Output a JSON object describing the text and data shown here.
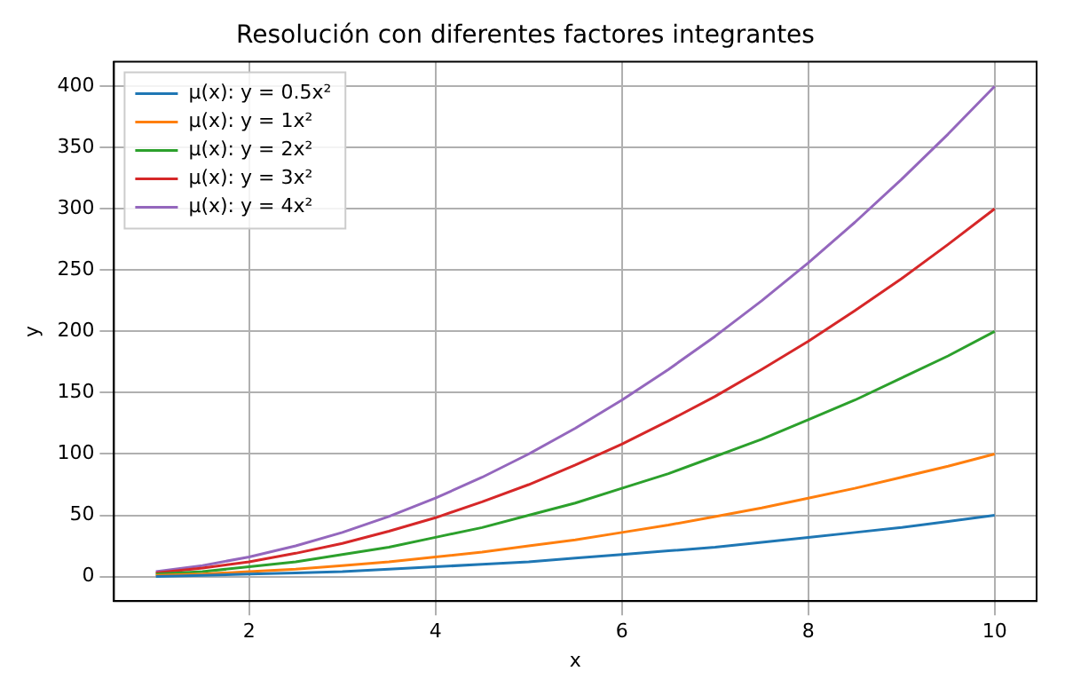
{
  "chart_data": {
    "type": "line",
    "title": "Resolución con diferentes factores integrantes",
    "xlabel": "x",
    "ylabel": "y",
    "x": [
      1,
      1.5,
      2,
      2.5,
      3,
      3.5,
      4,
      4.5,
      5,
      5.5,
      6,
      6.5,
      7,
      7.5,
      8,
      8.5,
      9,
      9.5,
      10
    ],
    "series": [
      {
        "name": "μ(x): y = 0.5x²",
        "color": "#1f77b4",
        "values": [
          0,
          1,
          2,
          3,
          4,
          6,
          8,
          10,
          12,
          15,
          18,
          21,
          24,
          28,
          32,
          36,
          40,
          45,
          50
        ]
      },
      {
        "name": "μ(x): y = 1x²",
        "color": "#ff7f0e",
        "values": [
          1,
          2,
          4,
          6,
          9,
          12,
          16,
          20,
          25,
          30,
          36,
          42,
          49,
          56,
          64,
          72,
          81,
          90,
          100
        ]
      },
      {
        "name": "μ(x): y = 2x²",
        "color": "#2ca02c",
        "values": [
          2,
          4,
          8,
          12,
          18,
          24,
          32,
          40,
          50,
          60,
          72,
          84,
          98,
          112,
          128,
          144,
          162,
          180,
          200
        ]
      },
      {
        "name": "μ(x): y = 3x²",
        "color": "#d62728",
        "values": [
          3,
          7,
          12,
          19,
          27,
          37,
          48,
          61,
          75,
          91,
          108,
          127,
          147,
          169,
          192,
          217,
          243,
          271,
          300
        ]
      },
      {
        "name": "μ(x): y = 4x²",
        "color": "#9467bd",
        "values": [
          4,
          9,
          16,
          25,
          36,
          49,
          64,
          81,
          100,
          121,
          144,
          169,
          196,
          225,
          256,
          289,
          324,
          361,
          400
        ]
      }
    ],
    "xlim": [
      0.55,
      10.45
    ],
    "xticks": [
      2,
      4,
      6,
      8,
      10
    ],
    "ylim": [
      -20,
      420
    ],
    "yticks": [
      0,
      50,
      100,
      150,
      200,
      250,
      300,
      350,
      400
    ],
    "grid": true,
    "legend": "top left",
    "marker": "none",
    "line_style": "solid"
  }
}
